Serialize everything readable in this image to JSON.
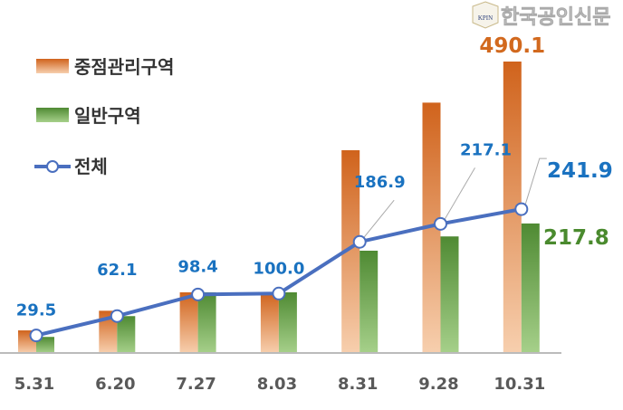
{
  "chart_data": {
    "type": "bar",
    "categories": [
      "5.31",
      "6.20",
      "7.27",
      "8.03",
      "8.31",
      "9.28",
      "10.31"
    ],
    "series": [
      {
        "name": "중점관리구역",
        "kind": "bar",
        "color": "#d2691e",
        "values": [
          38,
          71,
          102,
          102,
          341,
          421,
          490.1
        ]
      },
      {
        "name": "일반구역",
        "kind": "bar",
        "color": "#5a9a3c",
        "values": [
          27,
          62,
          102,
          102,
          172,
          196,
          217.8
        ]
      },
      {
        "name": "전체",
        "kind": "line",
        "color": "#4a6fbf",
        "values": [
          29.5,
          62.1,
          98.4,
          100.0,
          186.9,
          217.1,
          241.9
        ]
      }
    ],
    "data_labels": {
      "line": [
        "29.5",
        "62.1",
        "98.4",
        "100.0",
        "186.9",
        "217.1",
        "241.9"
      ],
      "bar_last_orange": "490.1",
      "bar_last_green": "217.8"
    },
    "ylim": [
      0,
      500
    ],
    "grid": false,
    "legend": "top-left",
    "label_colors": {
      "line": "#1a72c0",
      "orange": "#d2691e",
      "green": "#4a8a2e",
      "axis": "#595959"
    }
  },
  "watermark": {
    "logo_text": "KPIN",
    "text": "한국공인신문"
  }
}
